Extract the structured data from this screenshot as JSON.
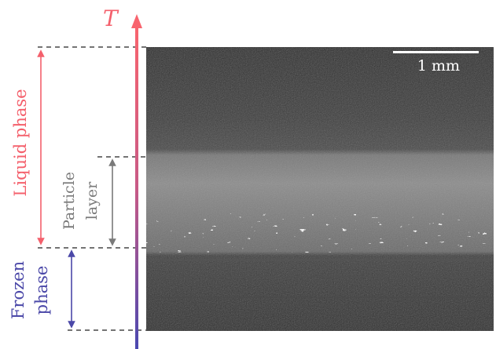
{
  "figure": {
    "axis_label": "T",
    "scale_bar_label": "1 mm",
    "regions": {
      "liquid": "Liquid phase",
      "particle_line1": "Particle",
      "particle_line2": "layer",
      "frozen_line1": "Frozen",
      "frozen_line2": "phase"
    },
    "colors": {
      "hot": "#f4606c",
      "cold": "#4b48a8",
      "particle": "#7a7a7a",
      "dashed": "#222222",
      "scale_bar": "#ffffff"
    }
  }
}
